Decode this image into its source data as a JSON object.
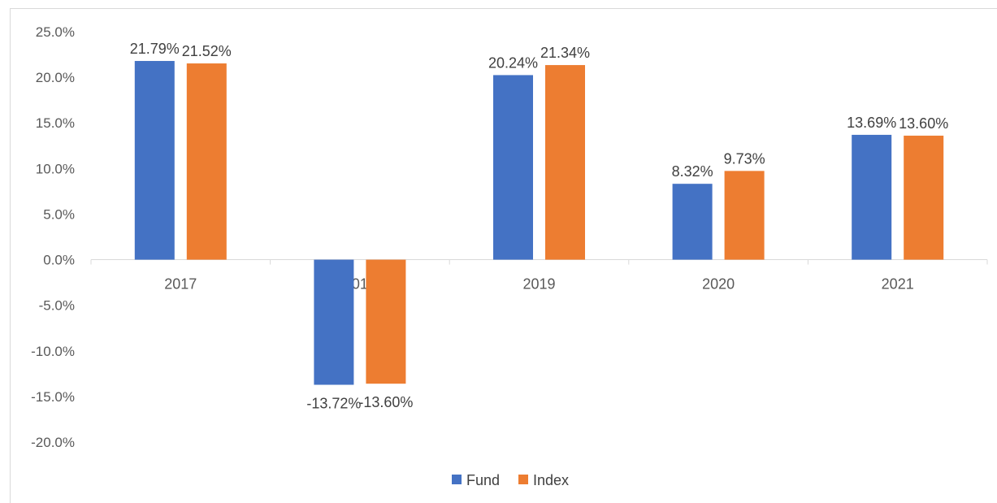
{
  "chart_data": {
    "type": "bar",
    "categories": [
      "2017",
      "2018",
      "2019",
      "2020",
      "2021"
    ],
    "series": [
      {
        "name": "Fund",
        "values": [
          21.79,
          -13.72,
          20.24,
          8.32,
          13.69
        ],
        "labels": [
          "21.79%",
          "-13.72%",
          "20.24%",
          "8.32%",
          "13.69%"
        ],
        "color": "#4472c4"
      },
      {
        "name": "Index",
        "values": [
          21.52,
          -13.6,
          21.34,
          9.73,
          13.6
        ],
        "labels": [
          "21.52%",
          "-13.60%",
          "21.34%",
          "9.73%",
          "13.60%"
        ],
        "color": "#ed7d31"
      }
    ],
    "ylim": [
      -20,
      25
    ],
    "yticks": [
      25,
      20,
      15,
      10,
      5,
      0,
      -5,
      -10,
      -15,
      -20
    ],
    "ytick_labels": [
      "25.0%",
      "20.0%",
      "15.0%",
      "10.0%",
      "5.0%",
      "0.0%",
      "-5.0%",
      "-10.0%",
      "-15.0%",
      "-20.0%"
    ],
    "grid": false,
    "legend": "bottom"
  }
}
